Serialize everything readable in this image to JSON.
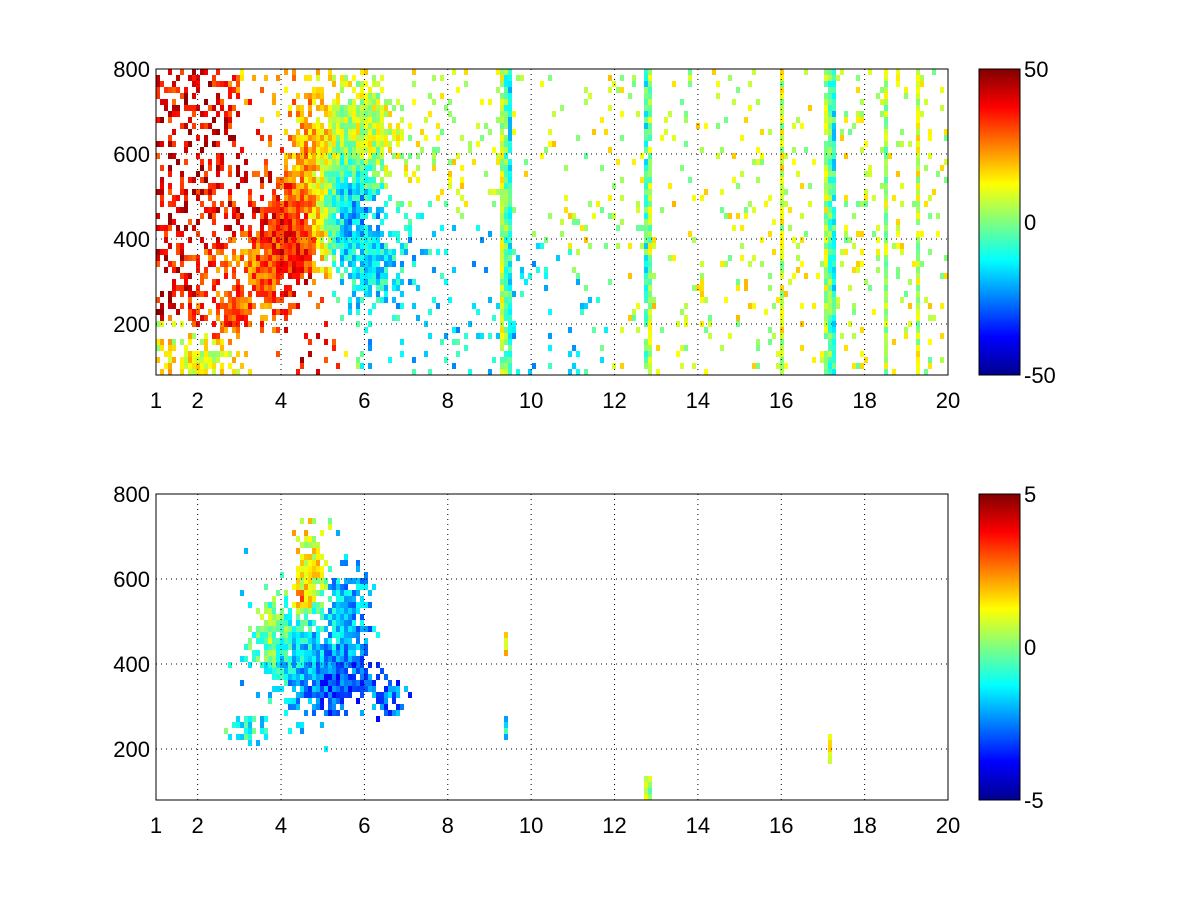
{
  "chart_data": [
    {
      "type": "heatmap",
      "xlim": [
        1,
        20
      ],
      "ylim": [
        80,
        800
      ],
      "x_tick_labels": [
        "1",
        "2",
        "4",
        "6",
        "8",
        "10",
        "12",
        "14",
        "16",
        "18",
        "20"
      ],
      "x_ticks": [
        1,
        2,
        4,
        6,
        8,
        10,
        12,
        14,
        16,
        18,
        20
      ],
      "y_tick_labels": [
        "200",
        "400",
        "600",
        "800"
      ],
      "y_ticks": [
        200,
        400,
        600,
        800
      ],
      "grid": true,
      "colormap": "jet",
      "clim": [
        -50,
        50
      ],
      "colorbar_tick_labels": [
        "50",
        "0",
        "-50"
      ],
      "colorbar_ticks": [
        50,
        0,
        -50
      ],
      "features": [
        {
          "shape": "blob",
          "x": 4.3,
          "y": 420,
          "rx": 0.8,
          "ry": 120,
          "value": 38
        },
        {
          "shape": "blob",
          "x": 3.6,
          "y": 330,
          "rx": 0.5,
          "ry": 80,
          "value": 26
        },
        {
          "shape": "blob",
          "x": 3.0,
          "y": 230,
          "rx": 0.35,
          "ry": 35,
          "value": 30
        },
        {
          "shape": "blob",
          "x": 4.7,
          "y": 560,
          "rx": 0.6,
          "ry": 140,
          "value": 22
        },
        {
          "shape": "blob",
          "x": 5.5,
          "y": 480,
          "rx": 0.7,
          "ry": 120,
          "value": -22
        },
        {
          "shape": "blob",
          "x": 6.2,
          "y": 340,
          "rx": 0.7,
          "ry": 70,
          "value": -14
        },
        {
          "shape": "blob",
          "x": 5.9,
          "y": 650,
          "rx": 0.8,
          "ry": 120,
          "value": 8
        },
        {
          "shape": "blob",
          "x": 2.0,
          "y": 110,
          "rx": 0.5,
          "ry": 25,
          "value": 12
        },
        {
          "shape": "blob",
          "x": 14.1,
          "y": 290,
          "rx": 0.15,
          "ry": 25,
          "value": 9
        },
        {
          "shape": "stripe",
          "x": 9.35,
          "value": 5
        },
        {
          "shape": "stripe",
          "x": 9.45,
          "value": -10
        },
        {
          "shape": "stripe",
          "x": 12.75,
          "value": -8
        },
        {
          "shape": "stripe",
          "x": 12.85,
          "value": 4
        },
        {
          "shape": "stripe",
          "x": 16.0,
          "value": 8
        },
        {
          "shape": "stripe",
          "x": 17.1,
          "value": 6
        },
        {
          "shape": "stripe",
          "x": 17.2,
          "value": -9
        },
        {
          "shape": "stripe",
          "x": 18.5,
          "value": 5
        },
        {
          "shape": "stripe",
          "x": 19.3,
          "value": 7
        }
      ]
    },
    {
      "type": "heatmap",
      "xlim": [
        1,
        20
      ],
      "ylim": [
        80,
        800
      ],
      "x_tick_labels": [
        "1",
        "2",
        "4",
        "6",
        "8",
        "10",
        "12",
        "14",
        "16",
        "18",
        "20"
      ],
      "x_ticks": [
        1,
        2,
        4,
        6,
        8,
        10,
        12,
        14,
        16,
        18,
        20
      ],
      "y_tick_labels": [
        "200",
        "400",
        "600",
        "800"
      ],
      "y_ticks": [
        200,
        400,
        600,
        800
      ],
      "grid": true,
      "colormap": "jet",
      "clim": [
        -5,
        5
      ],
      "colorbar_tick_labels": [
        "5",
        "0",
        "-5"
      ],
      "colorbar_ticks": [
        5,
        0,
        -5
      ],
      "features": [
        {
          "shape": "blob",
          "x": 4.4,
          "y": 420,
          "rx": 0.9,
          "ry": 110,
          "value": -1.5
        },
        {
          "shape": "blob",
          "x": 5.3,
          "y": 360,
          "rx": 0.8,
          "ry": 70,
          "value": -3.2
        },
        {
          "shape": "blob",
          "x": 5.6,
          "y": 520,
          "rx": 0.5,
          "ry": 110,
          "value": -2.0
        },
        {
          "shape": "blob",
          "x": 4.7,
          "y": 620,
          "rx": 0.35,
          "ry": 90,
          "value": 1.2
        },
        {
          "shape": "blob",
          "x": 3.8,
          "y": 470,
          "rx": 0.4,
          "ry": 60,
          "value": 0.8
        },
        {
          "shape": "blob",
          "x": 3.2,
          "y": 240,
          "rx": 0.4,
          "ry": 30,
          "value": -1.0
        },
        {
          "shape": "blob",
          "x": 4.5,
          "y": 550,
          "rx": 0.2,
          "ry": 25,
          "value": 3.5
        },
        {
          "shape": "blob",
          "x": 6.6,
          "y": 320,
          "rx": 0.3,
          "ry": 40,
          "value": -2.5
        },
        {
          "shape": "spot",
          "x": 9.4,
          "y": 450,
          "value": 1.5
        },
        {
          "shape": "spot",
          "x": 9.4,
          "y": 250,
          "value": -1.5
        },
        {
          "shape": "spot",
          "x": 17.2,
          "y": 200,
          "value": 0.8
        },
        {
          "shape": "spot",
          "x": 12.8,
          "y": 100,
          "value": 0.3
        }
      ]
    }
  ]
}
